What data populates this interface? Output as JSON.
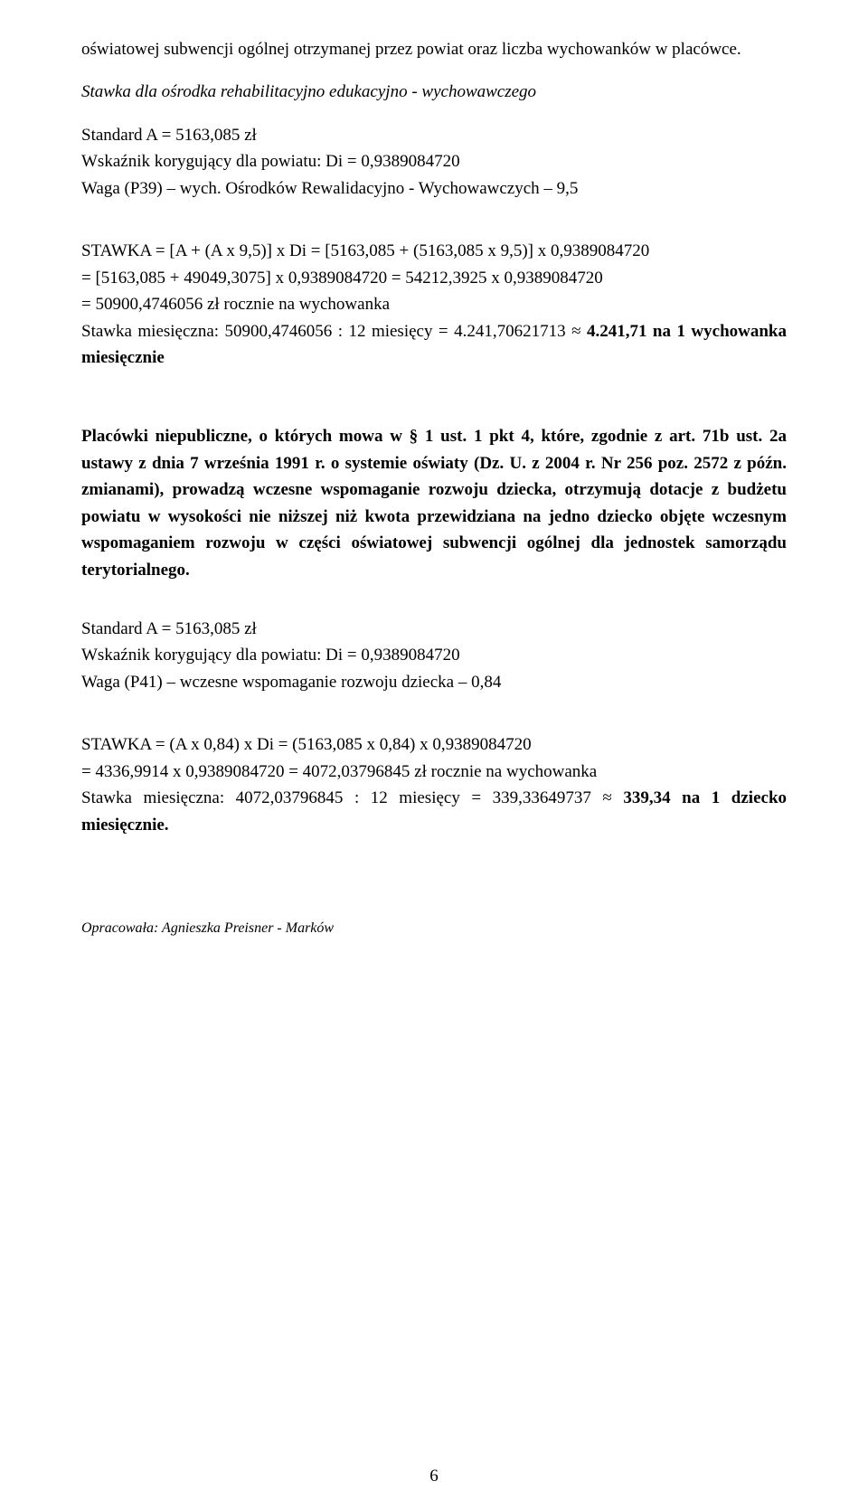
{
  "page": {
    "number": "6",
    "background_color": "#ffffff",
    "text_color": "#000000",
    "body_fontsize": 19,
    "line_height": 1.55
  },
  "p1": "oświatowej subwencji ogólnej otrzymanej przez powiat oraz liczba wychowanków w placówce.",
  "p2": "Stawka dla ośrodka rehabilitacyjno edukacyjno - wychowawczego",
  "p3": "Standard A = 5163,085 zł",
  "p4": "Wskaźnik korygujący dla powiatu: Di =  0,9389084720",
  "p5": "Waga (P39) – wych. Ośrodków Rewalidacyjno - Wychowawczych – 9,5",
  "p6": "STAWKA = [A + (A x 9,5)] x Di  = [5163,085 + (5163,085 x 9,5)] x 0,9389084720",
  "p7": "= [5163,085 + 49049,3075] x 0,9389084720 = 54212,3925 x 0,9389084720",
  "p8": "= 50900,4746056 zł rocznie na wychowanka",
  "p9a": "Stawka miesięczna: 50900,4746056 : 12 miesięcy = 4.241,70621713 ≈ ",
  "p9b": "4.241,71 na 1 wychowanka miesięcznie",
  "p10": "Placówki niepubliczne, o których mowa w § 1 ust. 1 pkt 4, które, zgodnie z art. 71b ust. 2a ustawy z dnia 7 września 1991 r. o systemie oświaty (Dz. U. z 2004 r. Nr 256 poz. 2572 z późn. zmianami), prowadzą wczesne wspomaganie rozwoju dziecka, otrzymują dotacje z budżetu powiatu w wysokości nie niższej niż kwota przewidziana na jedno dziecko objęte wczesnym wspomaganiem rozwoju w części oświatowej subwencji ogólnej dla jednostek samorządu terytorialnego.",
  "p11": "Standard A = 5163,085 zł",
  "p12": "Wskaźnik korygujący dla powiatu: Di =  0,9389084720",
  "p13": "Waga (P41) – wczesne wspomaganie rozwoju dziecka – 0,84",
  "p14": "STAWKA = (A x 0,84) x Di  = (5163,085 x 0,84) x 0,9389084720",
  "p15": "= 4336,9914 x 0,9389084720 = 4072,03796845 zł rocznie na wychowanka",
  "p16a": "Stawka miesięczna: 4072,03796845 : 12 miesięcy = 339,33649737 ≈ ",
  "p16b": "339,34 na 1 dziecko miesięcznie.",
  "author": "Opracowała: Agnieszka Preisner - Marków"
}
